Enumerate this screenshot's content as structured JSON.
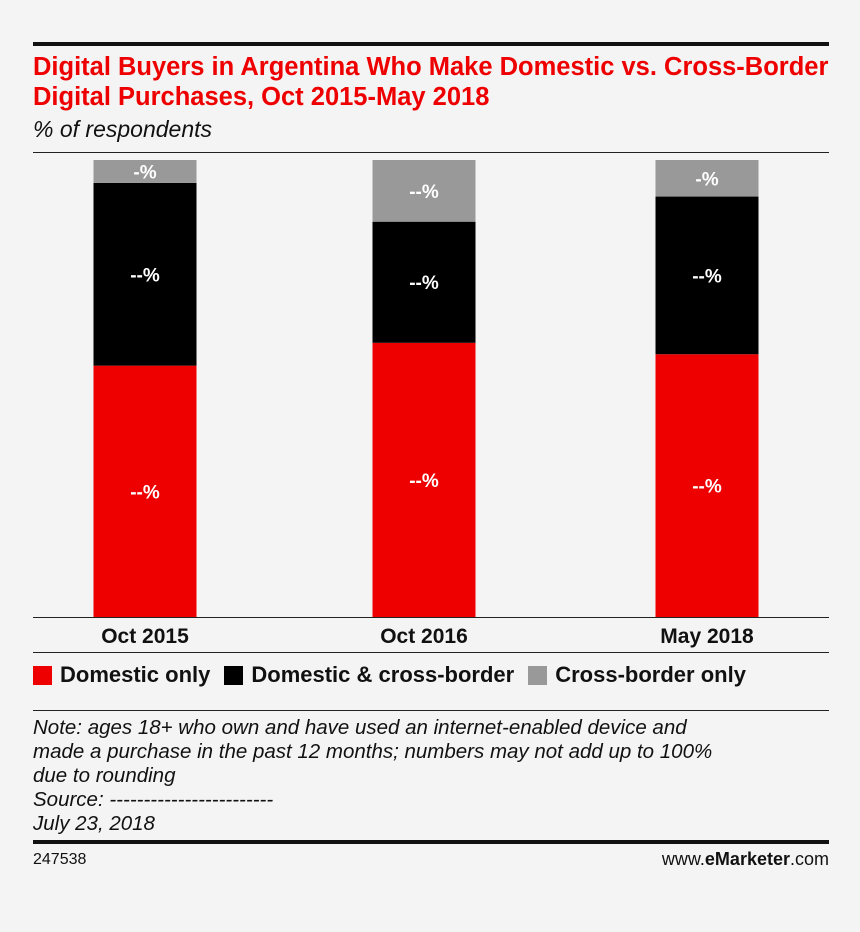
{
  "header": {
    "title": "Digital Buyers in Argentina Who Make Domestic vs. Cross-Border Digital Purchases, Oct 2015-May 2018",
    "subtitle": "% of respondents"
  },
  "colors": {
    "domestic_only": "#ee0000",
    "domestic_cross_border": "#000000",
    "cross_border_only": "#999999",
    "title": "#ee0000"
  },
  "chart_data": {
    "type": "bar",
    "stacked": true,
    "categories": [
      "Oct 2015",
      "Oct 2016",
      "May 2018"
    ],
    "series": [
      {
        "name": "Domestic only",
        "color": "#ee0000",
        "values": [
          55,
          60,
          57.5
        ],
        "labels": [
          "--%",
          "--%",
          "--%"
        ]
      },
      {
        "name": "Domestic & cross-border",
        "color": "#000000",
        "values": [
          40,
          26.5,
          34.5
        ],
        "labels": [
          "--%",
          "--%",
          "--%"
        ]
      },
      {
        "name": "Cross-border only",
        "color": "#999999",
        "values": [
          5,
          13.5,
          8
        ],
        "labels": [
          "-%",
          "--%",
          "-%"
        ]
      }
    ],
    "ylim": [
      0,
      100
    ],
    "legend_position": "bottom",
    "grid": false
  },
  "legend": {
    "items": [
      {
        "label": "Domestic only",
        "color": "#ee0000"
      },
      {
        "label": "Domestic & cross-border",
        "color": "#000000"
      },
      {
        "label": "Cross-border only",
        "color": "#999999"
      }
    ]
  },
  "note": {
    "lines": [
      "Note: ages 18+ who own and have used an internet-enabled device and",
      "made a purchase in the past 12 months; numbers may not add up to 100%",
      "due to rounding",
      "Source: ------------------------",
      "July 23, 2018"
    ]
  },
  "footer": {
    "chart_id": "247538",
    "brand_prefix": "www.",
    "brand_bold": "eMarketer",
    "brand_suffix": ".com"
  }
}
